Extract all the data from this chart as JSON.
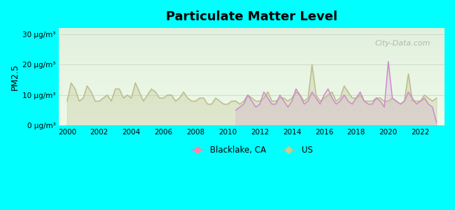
{
  "title": "Particulate Matter Level",
  "ylabel": "PM2.5",
  "background_color": "#00ffff",
  "plot_bg_top": "#e8f5e0",
  "plot_bg_bottom": "#f0ffe8",
  "ylim": [
    0,
    32
  ],
  "yticks": [
    0,
    10,
    20,
    30
  ],
  "ytick_labels": [
    "0 μg/m³",
    "10 μg/m³",
    "20 μg/m³",
    "30 μg/m³"
  ],
  "xlim": [
    1999.5,
    2023.5
  ],
  "xticks": [
    2000,
    2002,
    2004,
    2006,
    2008,
    2010,
    2012,
    2014,
    2016,
    2018,
    2020,
    2022
  ],
  "blacklake_color": "#cc88cc",
  "us_color": "#bbbb88",
  "watermark": "City-Data.com",
  "us_data": {
    "years": [
      2000.0,
      2000.25,
      2000.5,
      2000.75,
      2001.0,
      2001.25,
      2001.5,
      2001.75,
      2002.0,
      2002.25,
      2002.5,
      2002.75,
      2003.0,
      2003.25,
      2003.5,
      2003.75,
      2004.0,
      2004.25,
      2004.5,
      2004.75,
      2005.0,
      2005.25,
      2005.5,
      2005.75,
      2006.0,
      2006.25,
      2006.5,
      2006.75,
      2007.0,
      2007.25,
      2007.5,
      2007.75,
      2008.0,
      2008.25,
      2008.5,
      2008.75,
      2009.0,
      2009.25,
      2009.5,
      2009.75,
      2010.0,
      2010.25,
      2010.5,
      2010.75,
      2011.0,
      2011.25,
      2011.5,
      2011.75,
      2012.0,
      2012.25,
      2012.5,
      2012.75,
      2013.0,
      2013.25,
      2013.5,
      2013.75,
      2014.0,
      2014.25,
      2014.5,
      2014.75,
      2015.0,
      2015.25,
      2015.5,
      2015.75,
      2016.0,
      2016.25,
      2016.5,
      2016.75,
      2017.0,
      2017.25,
      2017.5,
      2017.75,
      2018.0,
      2018.25,
      2018.5,
      2018.75,
      2019.0,
      2019.25,
      2019.5,
      2019.75,
      2020.0,
      2020.25,
      2020.5,
      2020.75,
      2021.0,
      2021.25,
      2021.5,
      2021.75,
      2022.0,
      2022.25,
      2022.5,
      2022.75,
      2023.0
    ],
    "values": [
      8,
      14,
      12,
      8,
      9,
      13,
      11,
      8,
      8,
      9,
      10,
      8,
      12,
      12,
      9,
      10,
      9,
      14,
      11,
      8,
      10,
      12,
      11,
      9,
      9,
      10,
      10,
      8,
      9,
      11,
      9,
      8,
      8,
      9,
      9,
      7,
      7,
      9,
      8,
      7,
      7,
      8,
      8,
      7,
      8,
      10,
      9,
      8,
      8,
      9,
      11,
      8,
      8,
      9,
      9,
      8,
      9,
      11,
      10,
      8,
      9,
      20,
      10,
      8,
      9,
      10,
      11,
      8,
      9,
      13,
      11,
      9,
      9,
      10,
      8,
      8,
      8,
      9,
      9,
      8,
      8,
      9,
      8,
      7,
      8,
      17,
      8,
      8,
      8,
      10,
      9,
      8,
      9
    ]
  },
  "blacklake_data": {
    "years": [
      2010.5,
      2010.75,
      2011.0,
      2011.25,
      2011.5,
      2011.75,
      2012.0,
      2012.25,
      2012.5,
      2012.75,
      2013.0,
      2013.25,
      2013.5,
      2013.75,
      2014.0,
      2014.25,
      2014.5,
      2014.75,
      2015.0,
      2015.25,
      2015.5,
      2015.75,
      2016.0,
      2016.25,
      2016.5,
      2016.75,
      2017.0,
      2017.25,
      2017.5,
      2017.75,
      2018.0,
      2018.25,
      2018.5,
      2018.75,
      2019.0,
      2019.25,
      2019.5,
      2019.75,
      2020.0,
      2020.25,
      2020.5,
      2020.75,
      2021.0,
      2021.25,
      2021.5,
      2021.75,
      2022.0,
      2022.25,
      2022.5,
      2022.75,
      2023.0
    ],
    "values": [
      5,
      6,
      7,
      10,
      8,
      6,
      7,
      11,
      9,
      7,
      7,
      10,
      8,
      6,
      8,
      12,
      10,
      7,
      8,
      11,
      9,
      7,
      10,
      12,
      9,
      7,
      8,
      10,
      8,
      7,
      9,
      11,
      8,
      7,
      7,
      9,
      8,
      6,
      21,
      9,
      8,
      7,
      8,
      11,
      9,
      7,
      8,
      9,
      7,
      6,
      1
    ]
  }
}
